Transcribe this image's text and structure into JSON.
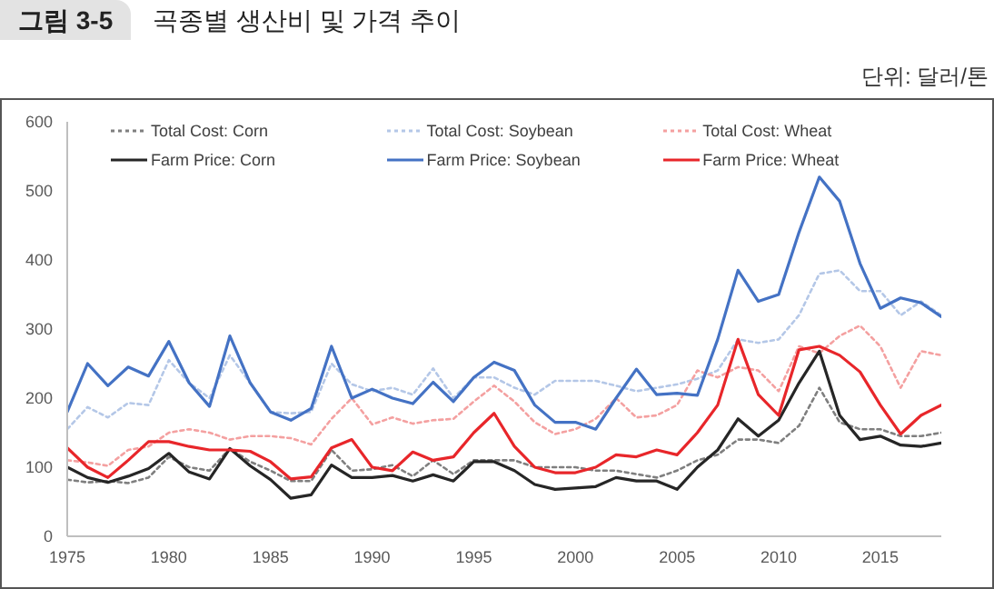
{
  "chart_data": {
    "type": "line",
    "title": "곡종별 생산비 및 가격 추이",
    "annotations": [
      "그림 3-5",
      "단위: 달러/톤"
    ],
    "x": [
      1975,
      1976,
      1977,
      1978,
      1979,
      1980,
      1981,
      1982,
      1983,
      1984,
      1985,
      1986,
      1987,
      1988,
      1989,
      1990,
      1991,
      1992,
      1993,
      1994,
      1995,
      1996,
      1997,
      1998,
      1999,
      2000,
      2001,
      2002,
      2003,
      2004,
      2005,
      2006,
      2007,
      2008,
      2009,
      2010,
      2011,
      2012,
      2013,
      2014,
      2015,
      2016,
      2017,
      2018
    ],
    "series": [
      {
        "name": "Total Cost:  Corn",
        "color": "#7f7f7f",
        "line_style": "dotted",
        "values": [
          82,
          78,
          80,
          77,
          85,
          115,
          100,
          95,
          127,
          108,
          95,
          80,
          80,
          125,
          95,
          97,
          103,
          87,
          110,
          90,
          110,
          110,
          110,
          100,
          100,
          100,
          95,
          95,
          90,
          85,
          95,
          110,
          118,
          140,
          140,
          135,
          160,
          215,
          165,
          155,
          155,
          145,
          145,
          150
        ]
      },
      {
        "name": "Total Cost:  Soybean",
        "color": "#b4c7e7",
        "line_style": "dotted",
        "values": [
          155,
          187,
          172,
          193,
          190,
          255,
          222,
          200,
          262,
          222,
          180,
          178,
          180,
          250,
          220,
          210,
          215,
          205,
          243,
          200,
          230,
          230,
          215,
          205,
          225,
          225,
          225,
          218,
          210,
          215,
          220,
          228,
          240,
          285,
          280,
          285,
          320,
          380,
          385,
          355,
          355,
          320,
          340,
          320
        ]
      },
      {
        "name": "Total Cost:  Wheat",
        "color": "#f4a0a0",
        "line_style": "dotted",
        "values": [
          110,
          107,
          102,
          125,
          130,
          150,
          155,
          150,
          140,
          145,
          145,
          142,
          133,
          170,
          200,
          162,
          172,
          163,
          168,
          170,
          195,
          218,
          195,
          165,
          148,
          155,
          170,
          200,
          172,
          175,
          190,
          240,
          230,
          245,
          240,
          210,
          275,
          265,
          290,
          305,
          275,
          215,
          268,
          262
        ]
      },
      {
        "name": "Farm Price:  Corn",
        "color": "#262626",
        "line_style": "solid",
        "values": [
          100,
          85,
          78,
          87,
          98,
          120,
          93,
          83,
          127,
          102,
          82,
          55,
          60,
          103,
          85,
          85,
          88,
          80,
          89,
          80,
          108,
          108,
          95,
          75,
          68,
          70,
          72,
          85,
          80,
          80,
          68,
          100,
          125,
          170,
          145,
          168,
          222,
          268,
          175,
          140,
          145,
          132,
          130,
          135
        ]
      },
      {
        "name": "Farm Price:  Soybean",
        "color": "#4472c4",
        "line_style": "solid",
        "values": [
          180,
          250,
          218,
          245,
          232,
          282,
          222,
          188,
          290,
          222,
          180,
          168,
          185,
          275,
          200,
          213,
          200,
          192,
          223,
          195,
          230,
          252,
          240,
          190,
          165,
          165,
          155,
          200,
          242,
          205,
          207,
          204,
          285,
          385,
          340,
          350,
          440,
          520,
          485,
          395,
          330,
          345,
          338,
          318
        ]
      },
      {
        "name": "Farm Price:  Wheat",
        "color": "#e8262a",
        "line_style": "solid",
        "values": [
          128,
          100,
          85,
          110,
          137,
          137,
          130,
          125,
          125,
          123,
          108,
          83,
          86,
          128,
          140,
          100,
          95,
          122,
          110,
          115,
          150,
          178,
          130,
          100,
          92,
          92,
          100,
          118,
          115,
          125,
          118,
          150,
          190,
          285,
          205,
          175,
          270,
          275,
          262,
          238,
          190,
          148,
          175,
          190
        ]
      }
    ],
    "xlim": [
      1975,
      2018
    ],
    "xticks": [
      1975,
      1980,
      1985,
      1990,
      1995,
      2000,
      2005,
      2010,
      2015
    ],
    "ylim": [
      0,
      600
    ],
    "yticks": [
      0,
      100,
      200,
      300,
      400,
      500,
      600
    ],
    "grid": false,
    "legend": "top",
    "marker": "none"
  }
}
